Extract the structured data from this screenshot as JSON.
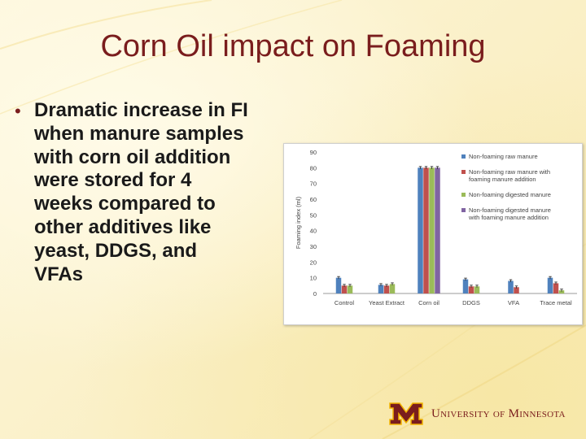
{
  "slide": {
    "title": "Corn Oil impact on Foaming",
    "bullet_marker": "•",
    "bullet": "Dramatic increase in FI\nwhen manure samples\nwith corn oil addition\nwere stored for 4\nweeks compared to\nother additives like\nyeast, DDGS, and\nVFAs"
  },
  "logo": {
    "text": "University of Minnesota",
    "maroon": "#7a1d1d",
    "gold": "#f2b400"
  },
  "chart_data": {
    "type": "bar",
    "ylabel": "Foaming index (ml)",
    "xlabel": "",
    "ylim": [
      0,
      90
    ],
    "yticks": [
      0,
      10,
      20,
      30,
      40,
      50,
      60,
      70,
      80,
      90
    ],
    "grid": false,
    "legend_position": "top-right",
    "categories": [
      "Control",
      "Yeast Extract",
      "Corn oil",
      "DDGS",
      "VFA",
      "Trace metal"
    ],
    "series": [
      {
        "name": "Non-foaming raw manure",
        "color": "#4f81bd",
        "values": [
          10,
          5.5,
          80,
          9,
          8,
          10
        ]
      },
      {
        "name": "Non-foaming raw manure with foaming manure addition",
        "color": "#c0504d",
        "values": [
          5,
          5,
          80,
          4.5,
          4,
          6.5
        ]
      },
      {
        "name": "Non-foaming digested manure",
        "color": "#9bbb59",
        "values": [
          5,
          6,
          80,
          4.5,
          null,
          2
        ]
      },
      {
        "name": "Non-foaming digested manure with foaming manure addition",
        "color": "#8064a2",
        "values": [
          null,
          null,
          80,
          null,
          null,
          null
        ]
      }
    ]
  }
}
